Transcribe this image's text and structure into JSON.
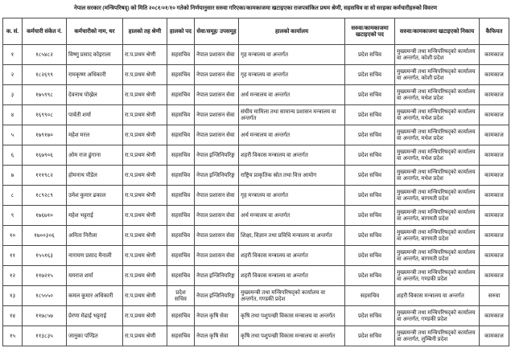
{
  "title": "नेपाल सरकार (मन्त्रिपरिषद्) को मिति २०८१/०१/१० गतेको निर्णयानुसार सरुवा गरिएका/कामकाजमा खटाइएका राजपत्रांकित प्रथम श्रेणी, सहसचिव वा सो सरहका कर्मचारीहरुको विवरण",
  "table": {
    "headers": {
      "sn": "क. सं.",
      "code": "कर्मचारी संकेत नं.",
      "name": "कर्मचारीको नाम, थर",
      "grade": "हालको तह श्रेणी",
      "post": "हालको पद",
      "service": "सेवा/समूह/ उपसमूह",
      "office": "हालको कार्यालय",
      "new_post": "सरुवा/कामकाजमा खटाइएको पद",
      "new_office": "सरुवा/कामकाजमा खटाइएको निकाय",
      "remark": "कैफियत"
    },
    "rows": [
      {
        "sn": "१",
        "code": "१८५४८२",
        "name": "विष्णु प्रसाद कोइराला",
        "grade": "रा.प.प्रथम श्रेणी",
        "post": "सहसचिव",
        "service": "नेपाल प्रशासन सेवा",
        "office": "गृह मन्त्रालय वा अन्तर्गत",
        "new_post": "प्रदेश सचिव",
        "new_office": "मुख्यमन्त्री तथा मन्त्रिपरिषद्को कार्यालय वा अन्तर्गत, कोशी प्रदेश",
        "remark": "कामकाज"
      },
      {
        "sn": "२",
        "code": "१८२६९९",
        "name": "रामकृष्ण अधिकारी",
        "grade": "रा.प.प्रथम श्रेणी",
        "post": "सहसचिव",
        "service": "नेपाल प्रशासन सेवा",
        "office": "गृह मन्त्रालय वा अन्तर्गत",
        "new_post": "प्रदेश सचिव",
        "new_office": "मुख्यमन्त्री तथा मन्त्रिपरिषद्को कार्यालय वा अन्तर्गत, कोशी प्रदेश",
        "remark": "कामकाज"
      },
      {
        "sn": "३",
        "code": "१७५९९८",
        "name": "देवनाथ पोख्रेल",
        "grade": "रा.प.प्रथम श्रेणी",
        "post": "सहसचिव",
        "service": "नेपाल प्रशासन सेवा",
        "office": "अर्थ मन्त्रालय वा अन्तर्गत",
        "new_post": "प्रदेश सचिव",
        "new_office": "मुख्यमन्त्री तथा मन्त्रिपरिषद्को कार्यालय वा अन्तर्गत, मधेश प्रदेश",
        "remark": "कामकाज"
      },
      {
        "sn": "४",
        "code": "१६९९०८",
        "name": "पार्वती शर्मा",
        "grade": "रा.प.प्रथम श्रेणी",
        "post": "सहसचिव",
        "service": "नेपाल प्रशासन सेवा",
        "office": "संघीय मामिला तथा सामान्य प्रशासन मन्त्रालय वा अन्तर्गत",
        "new_post": "प्रदेश सचिव",
        "new_office": "मुख्यमन्त्री तथा मन्त्रिपरिषद्को कार्यालय वा अन्तर्गत, मधेश प्रदेश",
        "remark": "कामकाज"
      },
      {
        "sn": "५",
        "code": "१७९१७०",
        "name": "महेश मरल",
        "grade": "रा.प.प्रथम श्रेणी",
        "post": "सहसचिव",
        "service": "नेपाल प्रशासन सेवा",
        "office": "अर्थ मन्त्रालय वा अन्तर्गत",
        "new_post": "प्रदेश सचिव",
        "new_office": "मुख्यमन्त्री तथा मन्त्रिपरिषद्को कार्यालय वा अन्तर्गत, मधेश प्रदेश",
        "remark": "कामकाज"
      },
      {
        "sn": "६",
        "code": "१६७९०६",
        "name": "ओम राज ढुंगाना",
        "grade": "रा.प.प्रथम श्रेणी",
        "post": "सहसचिव",
        "service": "नेपाल इन्जिनियरिङ्ग",
        "office": "शहरी विकास मन्त्रालय वा अन्तर्गत",
        "new_post": "प्रदेश सचिव",
        "new_office": "मुख्यमन्त्री तथा मन्त्रिपरिषद्को कार्यालय वा अन्तर्गत, मधेश प्रदेश",
        "remark": "कामकाज"
      },
      {
        "sn": "७",
        "code": "१११९८२",
        "name": "होमनाथ पौडेल",
        "grade": "रा.प.प्रथम श्रेणी",
        "post": "सहसचिव",
        "service": "नेपाल इन्जिनियरिङ्ग",
        "office": "राष्ट्रिय प्राकृतिक स्रोत तथा वित्त आयोग",
        "new_post": "प्रदेश सचिव",
        "new_office": "मुख्यमन्त्री तथा मन्त्रिपरिषद्को कार्यालय वा अन्तर्गत, मधेश प्रदेश",
        "remark": "कामकाज"
      },
      {
        "sn": "८",
        "code": "१८९२८९",
        "name": "उमेश कुमार ढकाल",
        "grade": "रा.प.प्रथम श्रेणी",
        "post": "सहसचिव",
        "service": "नेपाल प्रशासन सेवा",
        "office": "गृह मन्त्रालय वा अन्तर्गत",
        "new_post": "प्रदेश सचिव",
        "new_office": "मुख्यमन्त्री तथा मन्त्रिपरिषद्को कार्यालय वा अन्तर्गत, बागमती प्रदेश",
        "remark": "कामकाज"
      },
      {
        "sn": "९",
        "code": "१७६७१०",
        "name": "महेश भट्टराई",
        "grade": "रा.प.प्रथम श्रेणी",
        "post": "सहसचिव",
        "service": "नेपाल प्रशासन सेवा",
        "office": "अर्थ मन्त्रालय वा अन्तर्गत",
        "new_post": "प्रदेश सचिव",
        "new_office": "मुख्यमन्त्री तथा मन्त्रिपरिषद्को कार्यालय वा अन्तर्गत, बागमती प्रदेश",
        "remark": "कामकाज"
      },
      {
        "sn": "१०",
        "code": "१७००३०६",
        "name": "अनिता निरौला",
        "grade": "रा.प.प्रथम श्रेणी",
        "post": "सहसचिव",
        "service": "नेपाल प्रशासन सेवा",
        "office": "शिक्षा, विज्ञान तथा प्रविधि मन्त्रालय वा अन्तर्गत",
        "new_post": "प्रदेश सचिव",
        "new_office": "मुख्यमन्त्री तथा मन्त्रिपरिषद्को कार्यालय वा अन्तर्गत, बागमती प्रदेश",
        "remark": "कामकाज"
      },
      {
        "sn": "११",
        "code": "१५५१६३",
        "name": "नारायण प्रसाद मैनाली",
        "grade": "रा.प.प्रथम श्रेणी",
        "post": "सहसचिव",
        "service": "नेपाल प्रशासन सेवा",
        "office": "शहरी विकास मन्त्रालय वा अन्तर्गत",
        "new_post": "प्रदेश सचिव",
        "new_office": "मुख्यमन्त्री तथा मन्त्रिपरिषद्को कार्यालय वा अन्तर्गत, बागमती प्रदेश",
        "remark": "कामकाज"
      },
      {
        "sn": "१२",
        "code": "११७२१५",
        "name": "यमराज शर्मा",
        "grade": "रा.प.प्रथम श्रेणी",
        "post": "सहसचिव",
        "service": "नेपाल इन्जिनियरिङ्ग",
        "office": "शहरी विकास मन्त्रालय वा अन्तर्गत",
        "new_post": "प्रदेश सचिव",
        "new_office": "मुख्यमन्त्री तथा मन्त्रिपरिषद्को कार्यालय वा अन्तर्गत, गण्डकी प्रदेश",
        "remark": "कामकाज"
      },
      {
        "sn": "१३",
        "code": "१८५५५०",
        "name": "कमल कुमार अधिकारी",
        "grade": "रा.प.प्रथम श्रेणी",
        "post": "प्रदेश सचिव",
        "service": "नेपाल इन्जिनियरिङ्ग",
        "office": "मुख्यमन्त्री तथा मन्त्रिपरिषद्को कार्यालय वा अन्तर्गत, गण्डकी प्रदेश",
        "new_post": "सहसचिव",
        "new_office": "शहरी विकास मन्त्रालय वा अन्तर्गत",
        "remark": "सरुवा"
      },
      {
        "sn": "१४",
        "code": "११७८५७",
        "name": "प्रेरणा मेढाई भट्टराई",
        "grade": "रा.प.प्रथम श्रेणी",
        "post": "सहसचिव",
        "service": "नेपाल कृषि सेवा",
        "office": "कृषि तथा पशुपन्छी विकास मन्त्रालय वा अन्तर्गत",
        "new_post": "प्रदेश सचिव",
        "new_office": "मुख्यमन्त्री तथा मन्त्रिपरिषद्को कार्यालय वा अन्तर्गत, गण्डकी प्रदेश",
        "remark": "कामकाज"
      },
      {
        "sn": "१५",
        "code": "११३८३५",
        "name": "जानुका पण्डित",
        "grade": "रा.प.प्रथम श्रेणी",
        "post": "सहसचिव",
        "service": "नेपाल कृषि सेवा",
        "office": "कृषि तथा पशुपन्छी विकास मन्त्रालय वा अन्तर्गत",
        "new_post": "प्रदेश सचिव",
        "new_office": "मुख्यमन्त्री तथा मन्त्रिपरिषद्को कार्यालय वा अन्तर्गत, लुम्बिनी प्रदेश",
        "remark": "कामकाज"
      }
    ]
  }
}
